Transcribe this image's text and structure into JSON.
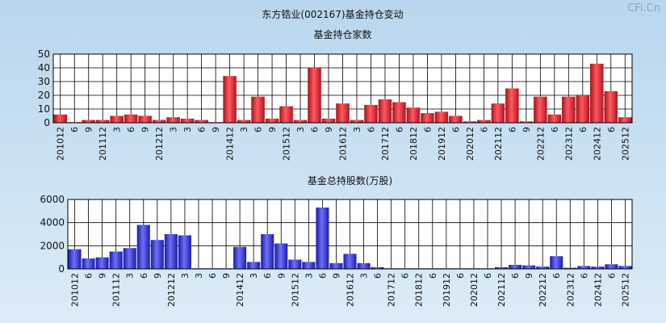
{
  "page_title": "东方锆业(002167)基金持仓变动",
  "watermark": "CFi.Cn",
  "chart_data": [
    {
      "type": "bar",
      "title": "基金持仓家数",
      "bar_color": "#e8303a",
      "ylim": [
        0,
        50
      ],
      "yticks": [
        0,
        10,
        20,
        30,
        40,
        50
      ],
      "grid": true,
      "tick_labels": [
        "201012",
        "6",
        "9",
        "201112",
        "3",
        "6",
        "9",
        "201212",
        "3",
        "3",
        "6",
        "9",
        "201412",
        "3",
        "6",
        "9",
        "201512",
        "3",
        "6",
        "9",
        "201612",
        "3",
        "6",
        "201712",
        "6",
        "201812",
        "6",
        "201912",
        "6",
        "202012",
        "6",
        "202112",
        "6",
        "9",
        "202212",
        "6",
        "202312",
        "6",
        "202412",
        "6",
        "202512"
      ],
      "values": [
        6,
        0,
        2,
        2,
        5,
        6,
        5,
        2,
        4,
        3,
        2,
        0,
        34,
        2,
        19,
        3,
        12,
        2,
        40,
        3,
        14,
        2,
        13,
        17,
        15,
        11,
        7,
        8,
        5,
        1,
        2,
        14,
        25,
        1,
        19,
        6,
        19,
        20,
        43,
        23,
        4
      ]
    },
    {
      "type": "bar",
      "title": "基金总持股数(万股)",
      "bar_color": "#3a3ae0",
      "ylim": [
        0,
        6000
      ],
      "yticks": [
        0,
        2000,
        4000,
        6000
      ],
      "grid": true,
      "tick_labels": [
        "201012",
        "6",
        "9",
        "201112",
        "3",
        "6",
        "9",
        "201212",
        "3",
        "3",
        "6",
        "9",
        "201412",
        "3",
        "6",
        "9",
        "201512",
        "3",
        "6",
        "9",
        "201612",
        "3",
        "6",
        "201712",
        "6",
        "201812",
        "6",
        "201912",
        "6",
        "202012",
        "6",
        "202112",
        "6",
        "9",
        "202212",
        "6",
        "202312",
        "6",
        "202412",
        "6",
        "202512"
      ],
      "values": [
        1700,
        900,
        1000,
        1500,
        1800,
        3800,
        2500,
        3000,
        2900,
        50,
        50,
        50,
        1900,
        600,
        3000,
        2200,
        800,
        600,
        5300,
        500,
        1300,
        500,
        150,
        50,
        50,
        50,
        50,
        50,
        50,
        50,
        50,
        150,
        350,
        300,
        200,
        1100,
        100,
        250,
        200,
        400,
        250
      ]
    }
  ]
}
